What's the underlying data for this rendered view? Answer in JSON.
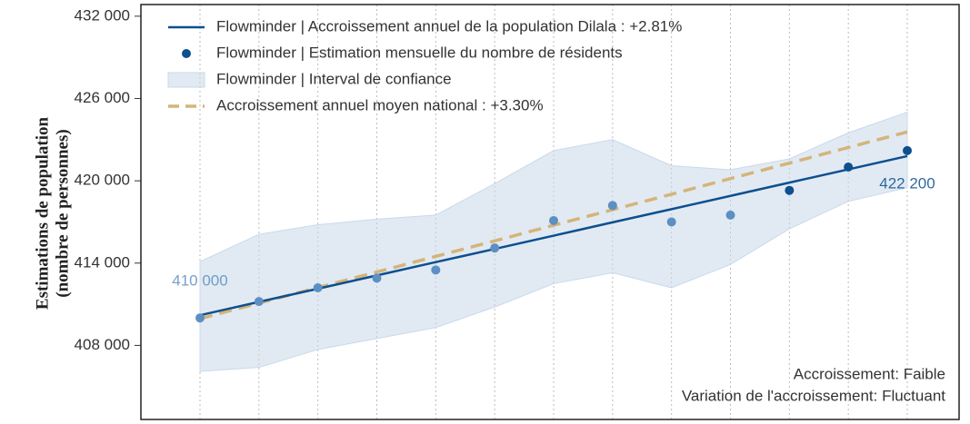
{
  "chart_data": {
    "type": "line",
    "y_label_lines": [
      "Estimations de population",
      "(nombre de personnes)"
    ],
    "categories": [
      null,
      null,
      null,
      null,
      null,
      null,
      null,
      null,
      null,
      null,
      null,
      null,
      null
    ],
    "ylim": [
      402600,
      432850
    ],
    "yticks": [
      {
        "value": 408000,
        "label": "408 000"
      },
      {
        "value": 414000,
        "label": "414 000"
      },
      {
        "value": 420000,
        "label": "420 000"
      },
      {
        "value": 426000,
        "label": "426 000"
      },
      {
        "value": 432000,
        "label": "432 000"
      }
    ],
    "vertical_grid": true,
    "legend": "upper left",
    "series": [
      {
        "name": "Flowminder | Accroissement annuel de la population Dilala : +2.81%",
        "style": "solid",
        "color": "#0d4f8f",
        "values": [
          410200,
          411170,
          412130,
          413100,
          414070,
          415030,
          416000,
          416970,
          417930,
          418900,
          419870,
          420830,
          421800
        ]
      },
      {
        "name": "Flowminder | Estimation mensuelle du nombre de résidents",
        "style": "points",
        "color": "#0d4f8f",
        "values": [
          410000,
          411200,
          412200,
          412900,
          413500,
          415100,
          417100,
          418200,
          417000,
          417500,
          419300,
          421000,
          422200
        ],
        "point_colors": [
          "#5d8fc2",
          "#5d8fc2",
          "#5d8fc2",
          "#5d8fc2",
          "#5d8fc2",
          "#5d8fc2",
          "#5d8fc2",
          "#5d8fc2",
          "#5d8fc2",
          "#5d8fc2",
          "#0d4f8f",
          "#0d4f8f",
          "#0d4f8f"
        ],
        "value_labels": [
          "410 000",
          null,
          null,
          null,
          null,
          null,
          null,
          null,
          null,
          null,
          null,
          null,
          "422 200"
        ]
      },
      {
        "name": "Flowminder | Interval de confiance",
        "style": "band",
        "color": "#c9d9ea",
        "upper": [
          414100,
          416100,
          416800,
          417200,
          417500,
          419800,
          422200,
          423000,
          421100,
          420800,
          421600,
          423500,
          425000
        ],
        "lower": [
          406100,
          406400,
          407700,
          408500,
          409300,
          410800,
          412500,
          413300,
          412200,
          413900,
          416500,
          418500,
          419500
        ]
      },
      {
        "name": "Accroissement annuel moyen national : +3.30%",
        "style": "dashed",
        "color": "#d4b47a",
        "values": [
          409950,
          411080,
          412220,
          413350,
          414490,
          415620,
          416760,
          417890,
          419020,
          420160,
          421290,
          422430,
          423560
        ]
      }
    ],
    "notes": [
      "Accroissement: Faible",
      "Variation de l'accroissement: Fluctuant"
    ]
  }
}
